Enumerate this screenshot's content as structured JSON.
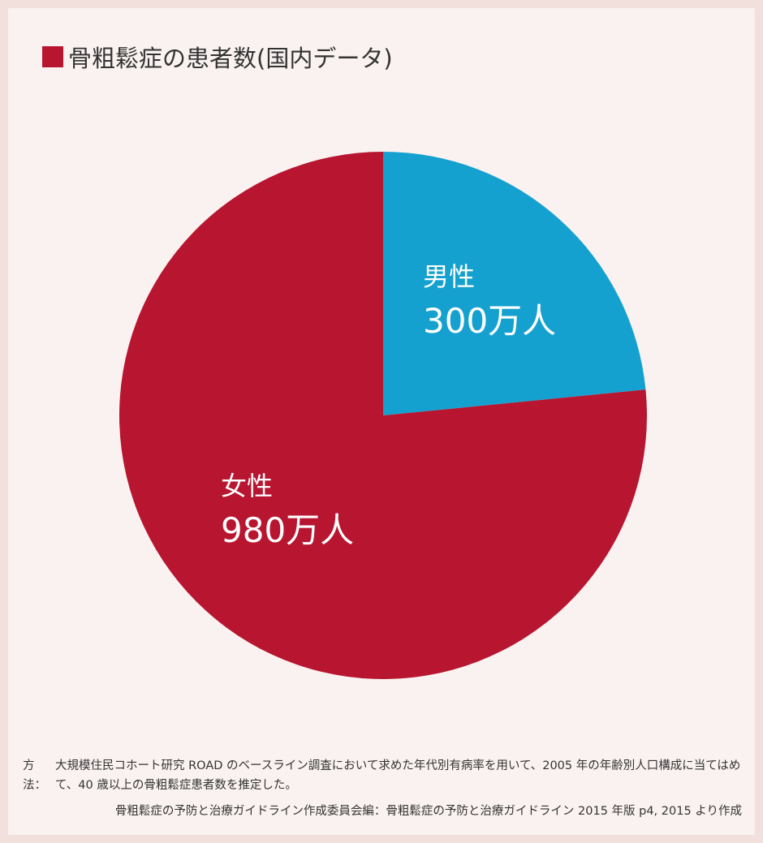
{
  "chart_data": {
    "type": "pie",
    "title": "骨粗鬆症の患者数(国内データ)",
    "unit": "万人",
    "slices": [
      {
        "label": "男性",
        "value": 300,
        "value_text": "300万人",
        "color": "#15a1cf"
      },
      {
        "label": "女性",
        "value": 980,
        "value_text": "980万人",
        "color": "#b71530"
      }
    ]
  },
  "colors": {
    "background": "#f9f2f0",
    "border": "#f2e0dc",
    "accent": "#b71530"
  },
  "notes": {
    "method_label": "方法：",
    "method_text": "大規模住民コホート研究 ROAD のベースライン調査において求めた年代別有病率を用いて、2005 年の年齢別人口構成に当てはめて、40 歳以上の骨粗鬆症患者数を推定した。",
    "source": "骨粗鬆症の予防と治療ガイドライン作成委員会編：骨粗鬆症の予防と治療ガイドライン 2015 年版 p4, 2015 より作成"
  }
}
